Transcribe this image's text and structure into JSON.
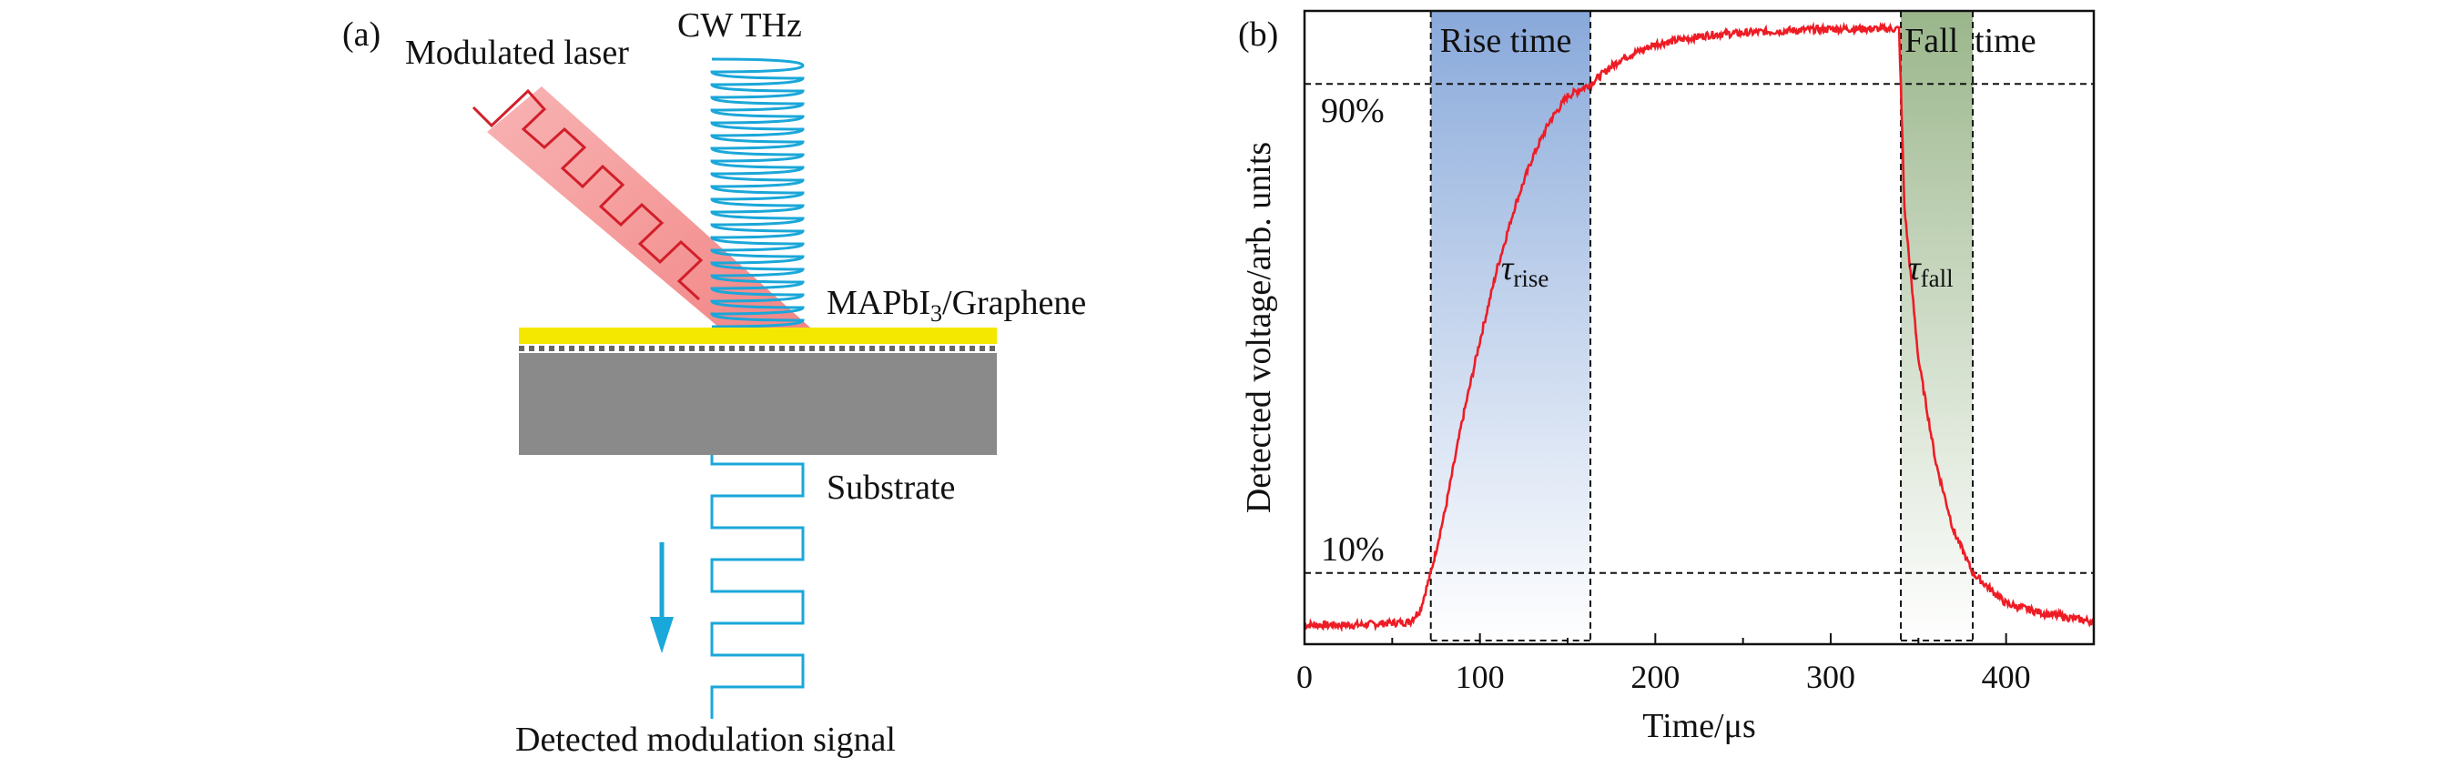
{
  "panel_a": {
    "tag": "(a)",
    "cw_thz": "CW THz",
    "modulated_laser": "Modulated laser",
    "material_main": "MAPbI",
    "material_sub": "3",
    "material_rest": "/Graphene",
    "substrate": "Substrate",
    "detected_signal": "Detected modulation signal"
  },
  "chart_data": {
    "type": "line",
    "panel_tag": "(b)",
    "xlabel": "Time/μs",
    "ylabel": "Detected voltage/arb. units",
    "xlim": [
      0,
      450
    ],
    "ylim": [
      0,
      1
    ],
    "xticks": [
      0,
      100,
      200,
      300,
      400
    ],
    "xtick_labels": [
      "0",
      "100",
      "200",
      "300",
      "400"
    ],
    "threshold_labels": {
      "high": "90%",
      "low": "10%"
    },
    "thresholds": {
      "high": 0.9,
      "low": 0.1
    },
    "rise_region": {
      "start": 72,
      "end": 163,
      "label": "Rise time",
      "tau_main": "τ",
      "tau_sub": "rise"
    },
    "fall_region": {
      "start": 340,
      "end": 381,
      "label_part1": "Fall",
      "label_part2": "time",
      "tau_main": "τ",
      "tau_sub": "fall"
    },
    "series": [
      {
        "name": "detected voltage",
        "color": "#ee1c25",
        "points": [
          [
            0,
            0.015
          ],
          [
            30,
            0.015
          ],
          [
            60,
            0.02
          ],
          [
            66,
            0.04
          ],
          [
            72,
            0.1
          ],
          [
            80,
            0.2
          ],
          [
            90,
            0.35
          ],
          [
            100,
            0.48
          ],
          [
            110,
            0.6
          ],
          [
            120,
            0.7
          ],
          [
            130,
            0.78
          ],
          [
            140,
            0.84
          ],
          [
            150,
            0.88
          ],
          [
            163,
            0.9
          ],
          [
            180,
            0.94
          ],
          [
            200,
            0.965
          ],
          [
            230,
            0.98
          ],
          [
            260,
            0.985
          ],
          [
            300,
            0.99
          ],
          [
            339,
            0.99
          ],
          [
            342,
            0.7
          ],
          [
            350,
            0.45
          ],
          [
            360,
            0.28
          ],
          [
            370,
            0.17
          ],
          [
            381,
            0.1
          ],
          [
            400,
            0.05
          ],
          [
            420,
            0.035
          ],
          [
            450,
            0.02
          ]
        ]
      }
    ]
  }
}
